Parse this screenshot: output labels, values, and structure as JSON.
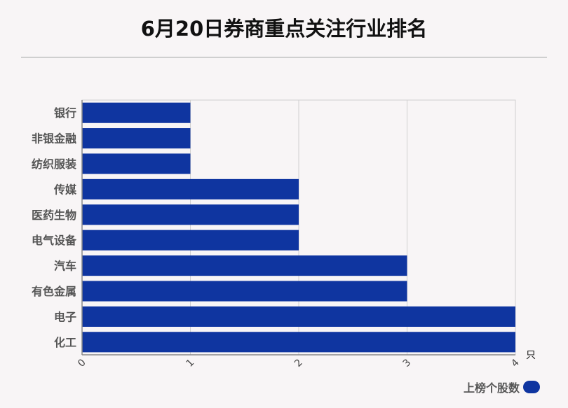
{
  "chart_data": {
    "type": "bar",
    "orientation": "horizontal",
    "title": "6月20日券商重点关注行业排名",
    "categories": [
      "银行",
      "非银金融",
      "纺织服装",
      "传媒",
      "医药生物",
      "电气设备",
      "汽车",
      "有色金属",
      "电子",
      "化工"
    ],
    "series": [
      {
        "name": "上榜个股数",
        "values": [
          1,
          1,
          1,
          2,
          2,
          2,
          3,
          3,
          4,
          4
        ]
      }
    ],
    "xlim": [
      0,
      4
    ],
    "x_ticks": [
      "0",
      "1",
      "2",
      "3",
      "4"
    ],
    "x_unit": "只",
    "grid": true,
    "legend_position": "bottom-right",
    "colors": {
      "bar": "#0f35a0",
      "grid": "#d0d0d0",
      "axis": "#888888"
    }
  }
}
